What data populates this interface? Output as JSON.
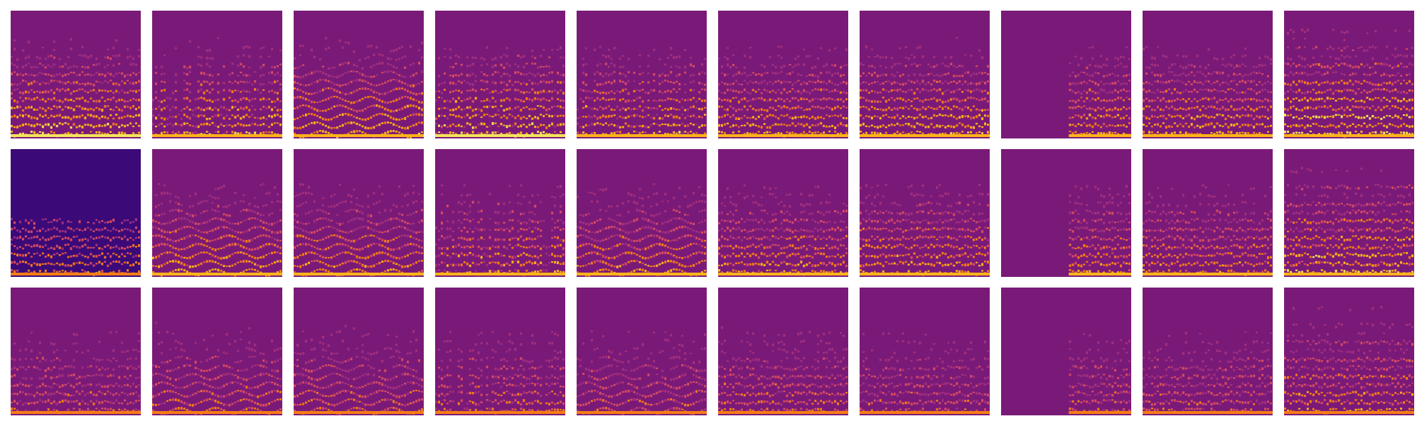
{
  "figure": {
    "rows": 3,
    "columns": 10,
    "colormap": [
      "#3b0a78",
      "#6a177e",
      "#a3307e",
      "#d84c5f",
      "#f57d15",
      "#fbb41a",
      "#f3e55d"
    ],
    "background_color": "#7a1a78",
    "panels": [
      [
        {
          "pattern": "dense",
          "brightness": 0.8
        },
        {
          "pattern": "vertical",
          "brightness": 0.75
        },
        {
          "pattern": "harmonic",
          "brightness": 0.75
        },
        {
          "pattern": "vertical",
          "brightness": 0.8
        },
        {
          "pattern": "vertical",
          "brightness": 0.75
        },
        {
          "pattern": "split",
          "brightness": 0.7
        },
        {
          "pattern": "dense",
          "brightness": 0.75
        },
        {
          "pattern": "blank-left",
          "brightness": 0.7
        },
        {
          "pattern": "dense",
          "brightness": 0.7
        },
        {
          "pattern": "bands",
          "brightness": 0.75
        }
      ],
      [
        {
          "pattern": "dark-top",
          "brightness": 0.6
        },
        {
          "pattern": "harmonic",
          "brightness": 0.7
        },
        {
          "pattern": "harmonic",
          "brightness": 0.65
        },
        {
          "pattern": "vertical",
          "brightness": 0.7
        },
        {
          "pattern": "harmonic",
          "brightness": 0.65
        },
        {
          "pattern": "split",
          "brightness": 0.65
        },
        {
          "pattern": "dense",
          "brightness": 0.7
        },
        {
          "pattern": "blank-left",
          "brightness": 0.65
        },
        {
          "pattern": "dense",
          "brightness": 0.65
        },
        {
          "pattern": "bands",
          "brightness": 0.7
        }
      ],
      [
        {
          "pattern": "dense",
          "brightness": 0.5
        },
        {
          "pattern": "harmonic",
          "brightness": 0.55
        },
        {
          "pattern": "harmonic",
          "brightness": 0.55
        },
        {
          "pattern": "vertical",
          "brightness": 0.55
        },
        {
          "pattern": "harmonic",
          "brightness": 0.5
        },
        {
          "pattern": "split",
          "brightness": 0.55
        },
        {
          "pattern": "dense",
          "brightness": 0.5
        },
        {
          "pattern": "blank-left",
          "brightness": 0.5
        },
        {
          "pattern": "dense",
          "brightness": 0.5
        },
        {
          "pattern": "bands",
          "brightness": 0.55
        }
      ]
    ]
  }
}
